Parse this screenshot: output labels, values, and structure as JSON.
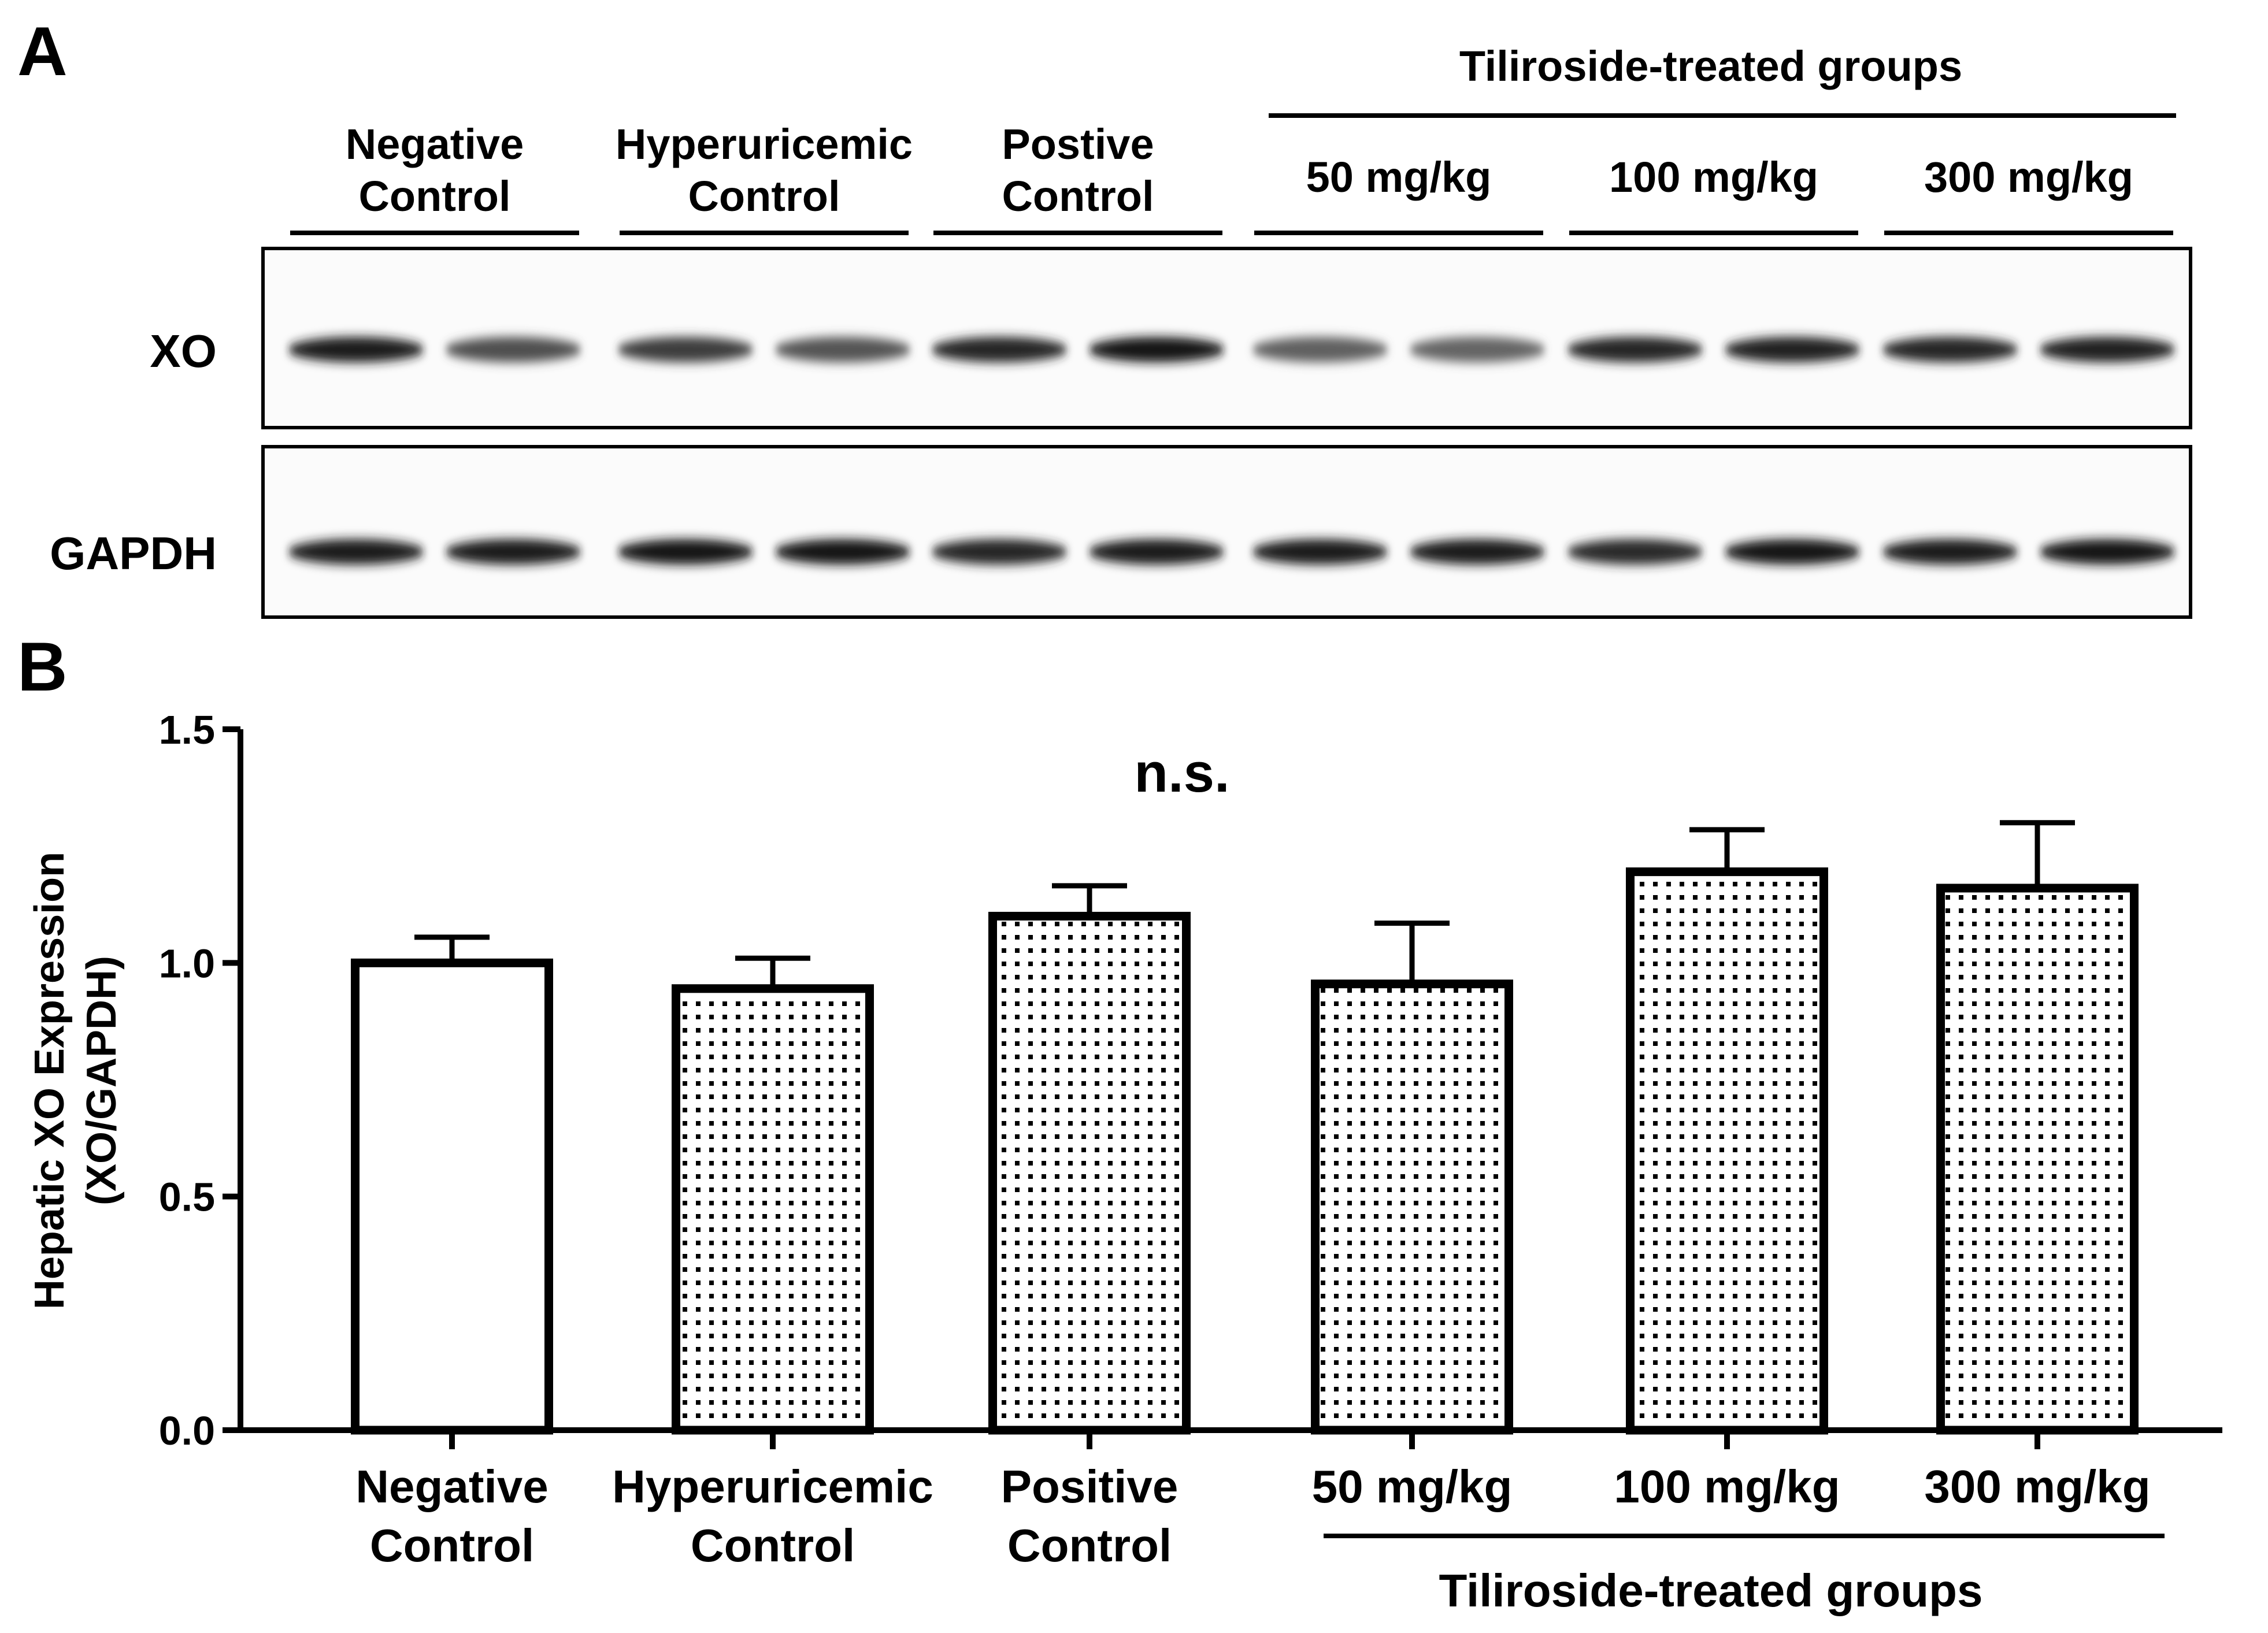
{
  "panel_a": {
    "letter": "A",
    "group_header": "Tiliroside-treated groups",
    "lane_groups": [
      {
        "line1": "Negative",
        "line2": "Control"
      },
      {
        "line1": "Hyperuricemic",
        "line2": "Control"
      },
      {
        "line1": "Postive",
        "line2": "Control"
      },
      {
        "line1": "50 mg/kg",
        "line2": ""
      },
      {
        "line1": "100 mg/kg",
        "line2": ""
      },
      {
        "line1": "300 mg/kg",
        "line2": ""
      }
    ],
    "blots": [
      {
        "label": "XO",
        "band_intensity": [
          0.95,
          0.7,
          0.78,
          0.68,
          0.9,
          0.98,
          0.62,
          0.6,
          0.9,
          0.92,
          0.9,
          0.92
        ]
      },
      {
        "label": "GAPDH",
        "band_intensity": [
          0.95,
          0.95,
          0.97,
          0.97,
          0.9,
          0.95,
          0.95,
          0.93,
          0.88,
          0.97,
          0.95,
          0.98
        ]
      }
    ]
  },
  "panel_b": {
    "letter": "B"
  },
  "chart_data": {
    "type": "bar",
    "categories": [
      {
        "line1": "Negative",
        "line2": "Control"
      },
      {
        "line1": "Hyperuricemic",
        "line2": "Control"
      },
      {
        "line1": "Positive",
        "line2": "Control"
      },
      {
        "line1": "50 mg/kg",
        "line2": ""
      },
      {
        "line1": "100 mg/kg",
        "line2": ""
      },
      {
        "line1": "300 mg/kg",
        "line2": ""
      }
    ],
    "values": [
      1.0,
      0.945,
      1.1,
      0.955,
      1.195,
      1.16
    ],
    "errors": [
      0.055,
      0.065,
      0.065,
      0.13,
      0.09,
      0.14
    ],
    "fill": [
      "solid",
      "dotted",
      "dotted",
      "dotted",
      "dotted",
      "dotted"
    ],
    "ylabel_line1": "Hepatic XO Expression",
    "ylabel_line2": "(XO/GAPDH)",
    "ylim": [
      0,
      1.5
    ],
    "yticks": [
      "0.0",
      "0.5",
      "1.0",
      "1.5"
    ],
    "group_label": "Tiliroside-treated groups",
    "annotation": "n.s."
  }
}
